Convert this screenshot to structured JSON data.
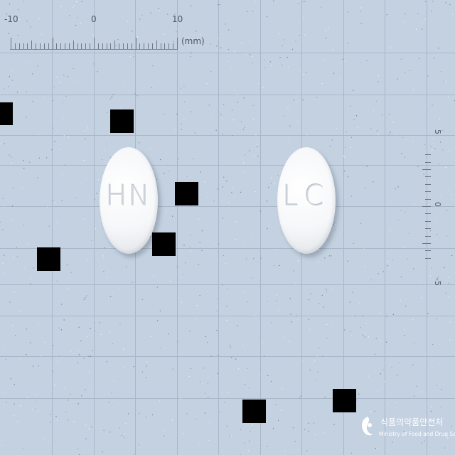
{
  "image": {
    "background_color": "#c3d1e1",
    "grid_color": "#a9b7c9",
    "mask_color": "#000000"
  },
  "ruler_top": {
    "labels": [
      "-10",
      "0",
      "10"
    ],
    "unit": "(mm)"
  },
  "ruler_right": {
    "labels": [
      "5",
      "0",
      "-5"
    ]
  },
  "pills": [
    {
      "name": "pill-hn",
      "imprint": "HN"
    },
    {
      "name": "pill-lc",
      "imprint": "LC"
    }
  ],
  "logo": {
    "title": "식품의약품안전처",
    "subtitle": "Ministry of Food and Drug Safety"
  }
}
